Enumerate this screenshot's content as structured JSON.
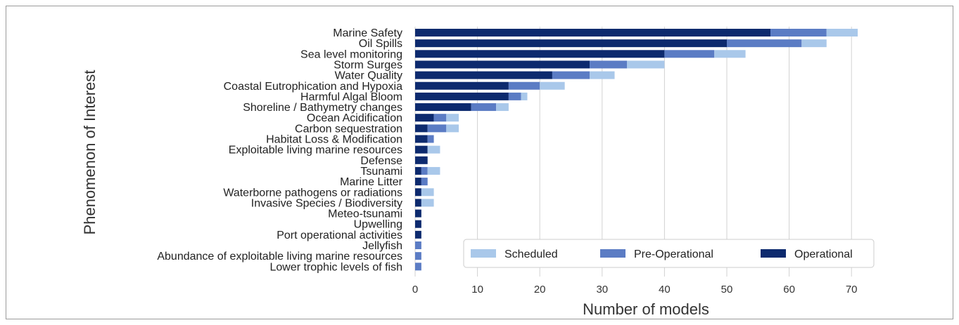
{
  "chart_data": {
    "type": "bar",
    "orientation": "horizontal",
    "stacked": true,
    "xlabel": "Number of models",
    "ylabel": "Phenomenon of Interest",
    "xlim": [
      0,
      73
    ],
    "xticks": [
      0,
      10,
      20,
      30,
      40,
      50,
      60,
      70
    ],
    "grid": "vertical",
    "legend_position": "bottom-right",
    "categories": [
      "Marine Safety",
      "Oil Spills",
      "Sea level monitoring",
      "Storm Surges",
      "Water Quality",
      "Coastal Eutrophication and Hypoxia",
      "Harmful Algal Bloom",
      "Shoreline / Bathymetry changes",
      "Ocean Acidification",
      "Carbon sequestration",
      "Habitat Loss & Modification",
      "Exploitable living marine resources",
      "Defense",
      "Tsunami",
      "Marine Litter",
      "Waterborne pathogens or radiations",
      "Invasive Species / Biodiversity",
      "Meteo-tsunami",
      "Upwelling",
      "Port operational activities",
      "Jellyfish",
      "Abundance of exploitable living marine resources",
      "Lower trophic levels of fish"
    ],
    "series": [
      {
        "name": "Operational",
        "color": "#0d2a6e",
        "values": [
          57,
          50,
          40,
          28,
          22,
          15,
          15,
          9,
          3,
          2,
          2,
          2,
          2,
          1,
          1,
          1,
          1,
          1,
          1,
          1,
          0,
          0,
          0
        ]
      },
      {
        "name": "Pre-Operational",
        "color": "#5b7cc4",
        "values": [
          9,
          12,
          8,
          6,
          6,
          5,
          2,
          4,
          2,
          3,
          1,
          0,
          0,
          1,
          1,
          0,
          0,
          0,
          0,
          0,
          1,
          1,
          1
        ]
      },
      {
        "name": "Scheduled",
        "color": "#a9c8ea",
        "values": [
          5,
          4,
          5,
          6,
          4,
          4,
          1,
          2,
          2,
          2,
          0,
          2,
          0,
          2,
          0,
          2,
          2,
          0,
          0,
          0,
          0,
          0,
          0
        ]
      }
    ],
    "legend_order": [
      "Scheduled",
      "Pre-Operational",
      "Operational"
    ]
  }
}
